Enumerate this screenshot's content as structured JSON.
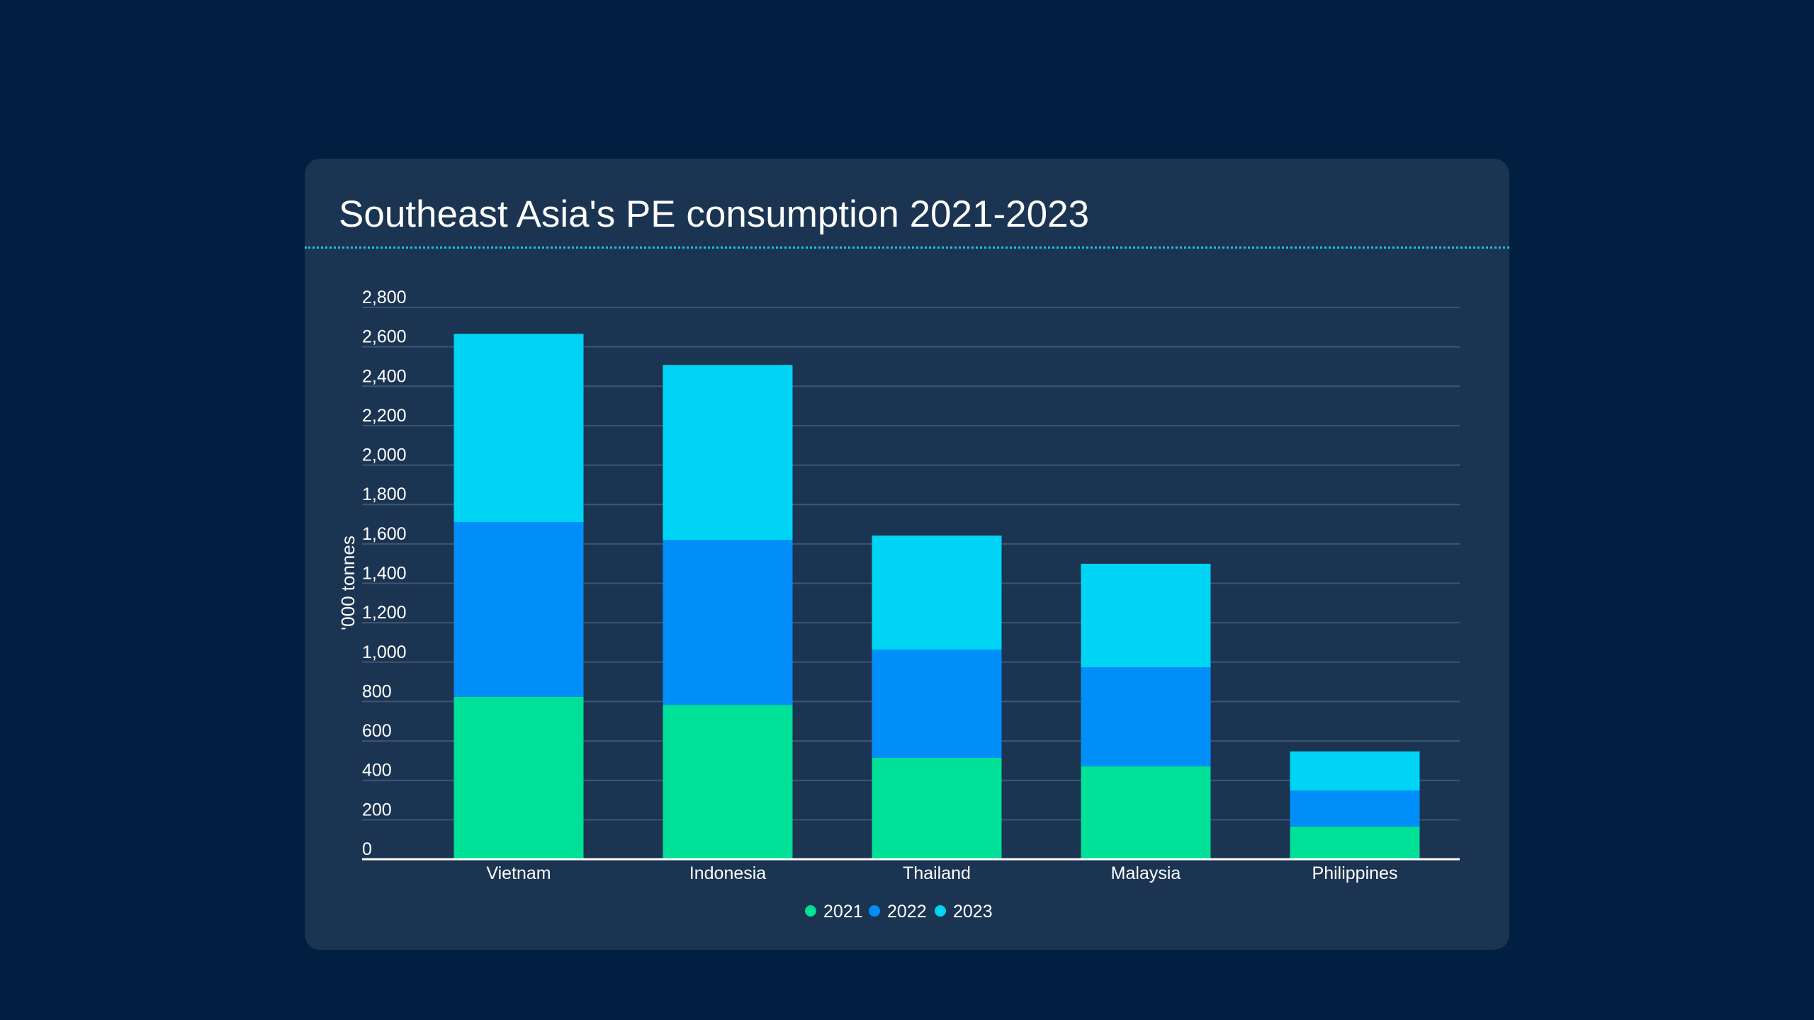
{
  "chart_data": {
    "type": "bar",
    "stacked": true,
    "title": "Southeast Asia's PE consumption 2021-2023",
    "xlabel": "",
    "ylabel": "'000 tonnes",
    "ylim": [
      0,
      2800
    ],
    "yticks": [
      0,
      200,
      400,
      600,
      800,
      1000,
      1200,
      1400,
      1600,
      1800,
      2000,
      2200,
      2400,
      2600,
      2800
    ],
    "ytick_labels": [
      "0",
      "200",
      "400",
      "600",
      "800",
      "1,000",
      "1,200",
      "1,400",
      "1,600",
      "1,800",
      "2,000",
      "2,200",
      "2,400",
      "2,600",
      "2,800"
    ],
    "categories": [
      "Vietnam",
      "Indonesia",
      "Thailand",
      "Malaysia",
      "Philippines"
    ],
    "series": [
      {
        "name": "2021",
        "color": "#00e096",
        "values": [
          824,
          783,
          514,
          472,
          166
        ]
      },
      {
        "name": "2022",
        "color": "#008ff8",
        "values": [
          887,
          837,
          550,
          502,
          182
        ]
      },
      {
        "name": "2023",
        "color": "#00d4f5",
        "values": [
          955,
          888,
          578,
          525,
          199
        ]
      }
    ],
    "grid": true,
    "legend_position": "bottom-center"
  }
}
